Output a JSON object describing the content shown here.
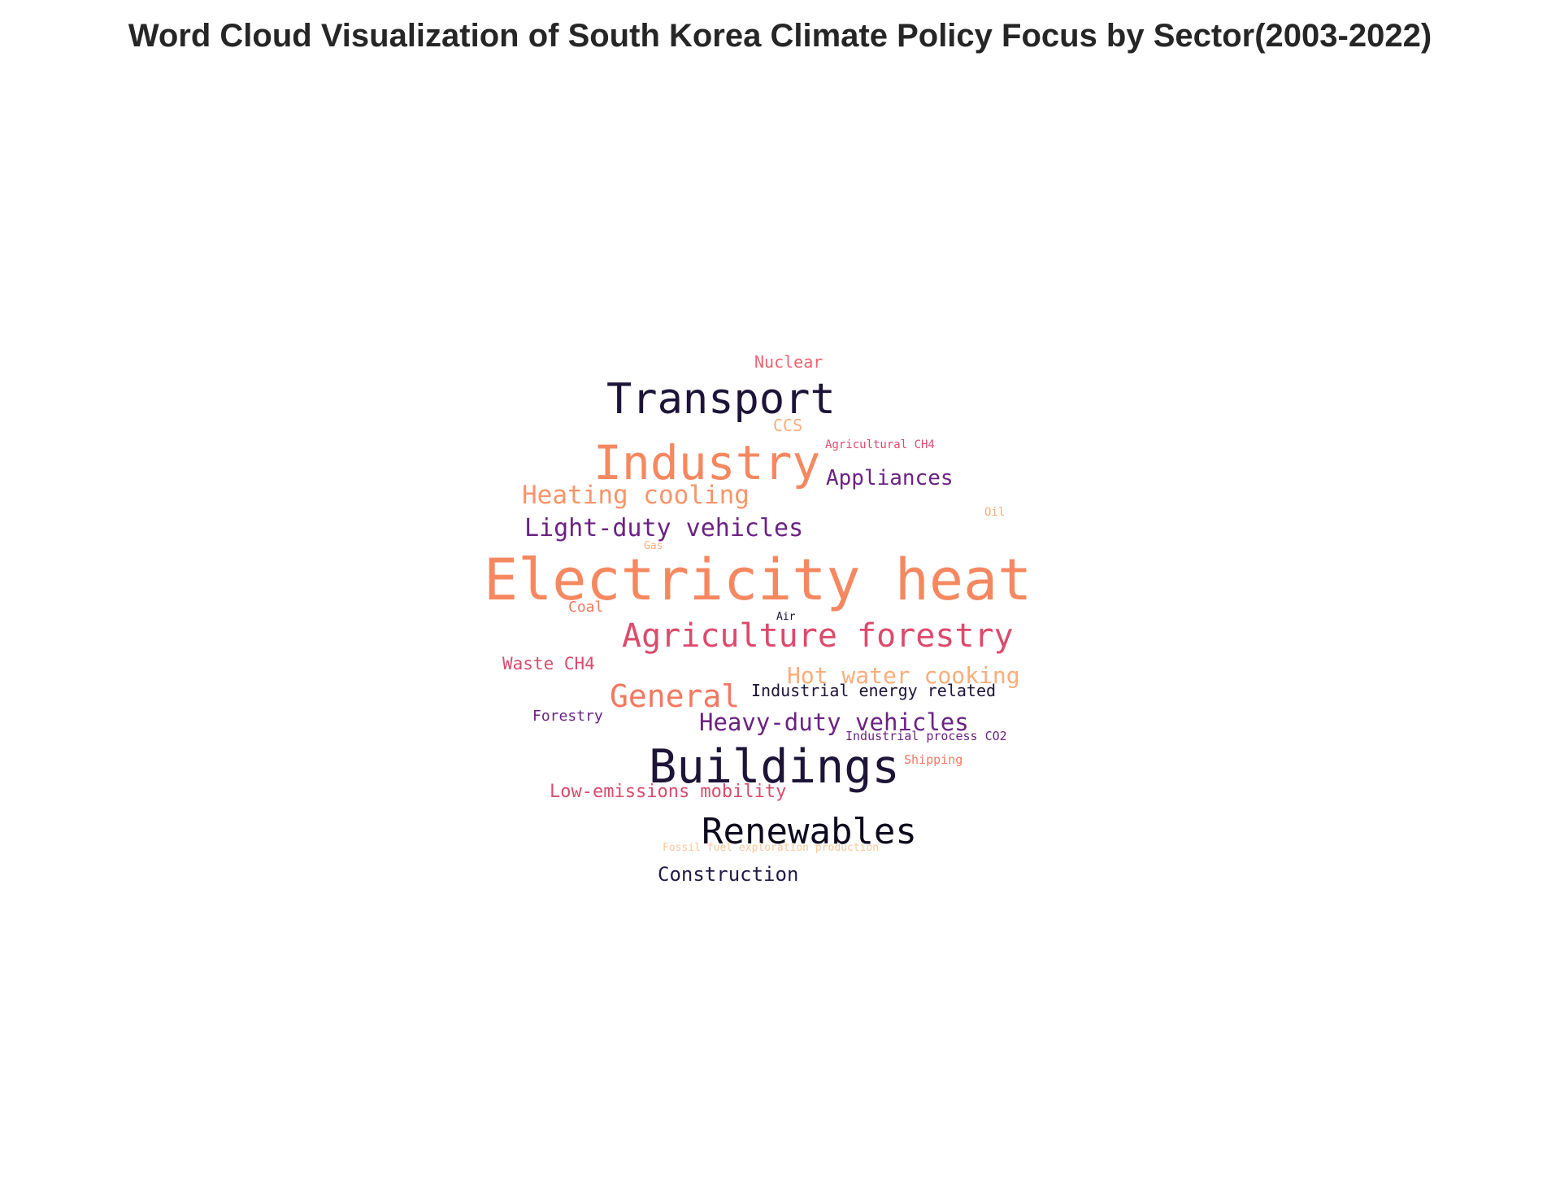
{
  "chart_data": {
    "type": "wordcloud",
    "title": "Word Cloud Visualization of South Korea Climate Policy Focus by Sector(2003-2022)",
    "words": [
      {
        "text": "Electricity heat",
        "color": "#f58860"
      },
      {
        "text": "Buildings",
        "color": "#1d1438"
      },
      {
        "text": "Industry",
        "color": "#f58860"
      },
      {
        "text": "Transport",
        "color": "#1d1438"
      },
      {
        "text": "Renewables",
        "color": "#0d0a1e"
      },
      {
        "text": "Agriculture forestry",
        "color": "#dc4a6c"
      },
      {
        "text": "General",
        "color": "#f37860"
      },
      {
        "text": "Light-duty vehicles",
        "color": "#6b2282"
      },
      {
        "text": "Heavy-duty vehicles",
        "color": "#6b2282"
      },
      {
        "text": "Heating cooling",
        "color": "#f8956a"
      },
      {
        "text": "Hot water cooking",
        "color": "#fbad7a"
      },
      {
        "text": "Appliances",
        "color": "#6b2282"
      },
      {
        "text": "Construction",
        "color": "#231a45"
      },
      {
        "text": "Low-emissions mobility",
        "color": "#dc4a6c"
      },
      {
        "text": "Industrial energy related",
        "color": "#1d1438"
      },
      {
        "text": "Waste CH4",
        "color": "#dc4a6c"
      },
      {
        "text": "Nuclear",
        "color": "#ec636e"
      },
      {
        "text": "Forestry",
        "color": "#6b2282"
      },
      {
        "text": "CCS",
        "color": "#fbad7a"
      },
      {
        "text": "Coal",
        "color": "#f37860"
      },
      {
        "text": "Industrial process CO2",
        "color": "#6b2282"
      },
      {
        "text": "Agricultural CH4",
        "color": "#dc4a6c"
      },
      {
        "text": "Shipping",
        "color": "#f37860"
      },
      {
        "text": "Fossil fuel exploration production",
        "color": "#fcc799"
      },
      {
        "text": "Oil",
        "color": "#fbad7a"
      },
      {
        "text": "Gas",
        "color": "#fbad7a"
      },
      {
        "text": "Air",
        "color": "#1d1438"
      }
    ]
  }
}
